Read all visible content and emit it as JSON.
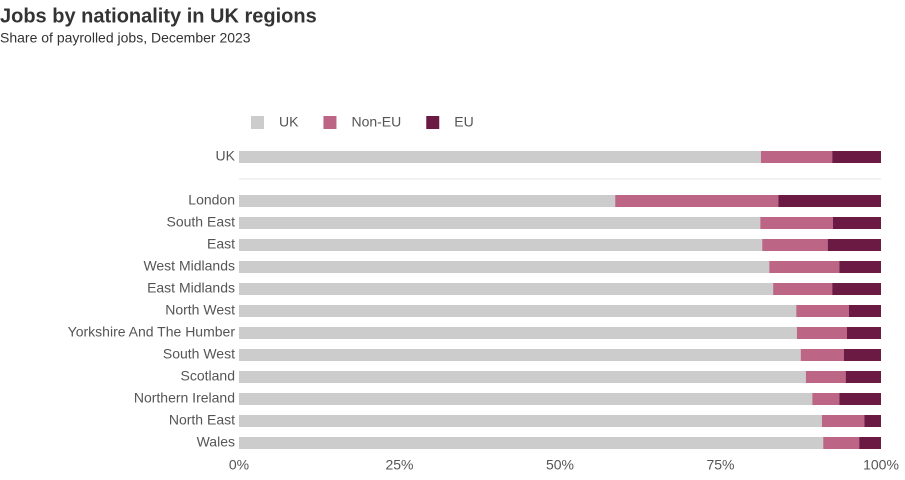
{
  "chart_data": {
    "type": "bar",
    "orientation": "horizontal",
    "stacked": true,
    "title": "Jobs by nationality in UK regions",
    "subtitle": "Share of payrolled jobs, December 2023",
    "categories": [
      "UK",
      "London",
      "South East",
      "East",
      "West Midlands",
      "East Midlands",
      "North West",
      "Yorkshire And The Humber",
      "South West",
      "Scotland",
      "Northern Ireland",
      "North East",
      "Wales"
    ],
    "series": [
      {
        "name": "UK",
        "color": "#cccccc",
        "values": [
          81.3,
          58.6,
          81.2,
          81.5,
          82.6,
          83.2,
          86.8,
          86.9,
          87.5,
          88.3,
          89.3,
          90.8,
          91.0
        ]
      },
      {
        "name": "Non-EU",
        "color": "#bc6585",
        "values": [
          11.1,
          25.4,
          11.3,
          10.2,
          10.9,
          9.2,
          8.2,
          7.8,
          6.7,
          6.2,
          4.2,
          6.6,
          5.6
        ]
      },
      {
        "name": "EU",
        "color": "#6b1a43",
        "values": [
          7.6,
          16.0,
          7.5,
          8.3,
          6.5,
          7.6,
          5.0,
          5.3,
          5.8,
          5.5,
          6.5,
          2.6,
          3.4
        ]
      }
    ],
    "xlim": [
      0,
      100
    ],
    "xticks": [
      {
        "value": 0,
        "label": "0%"
      },
      {
        "value": 25,
        "label": "25%"
      },
      {
        "value": 50,
        "label": "50%"
      },
      {
        "value": 75,
        "label": "75%"
      },
      {
        "value": 100,
        "label": "100%"
      }
    ],
    "legend": "top-left"
  }
}
